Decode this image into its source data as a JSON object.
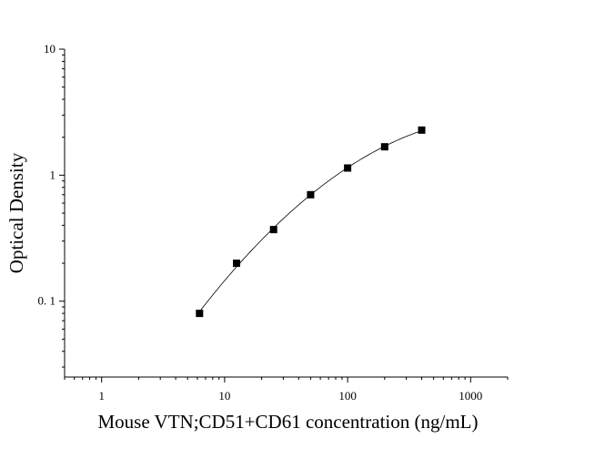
{
  "chart_data": {
    "type": "scatter",
    "title": "",
    "xlabel": "Mouse VTN;CD51+CD61 concentration (ng/mL)",
    "ylabel": "Optical Density",
    "x_scale": "log",
    "y_scale": "log",
    "xlim": [
      0.5,
      2000
    ],
    "ylim": [
      0.025,
      10
    ],
    "x_ticks": [
      1,
      10,
      100,
      1000
    ],
    "x_tick_labels": [
      "1",
      "10",
      "100",
      "1000"
    ],
    "y_ticks": [
      0.1,
      1,
      10
    ],
    "y_tick_labels": [
      "0. 1",
      "1",
      "10"
    ],
    "grid": false,
    "legend": "none",
    "series": [
      {
        "x": [
          6.25,
          12.5,
          25,
          50,
          100,
          200,
          400
        ],
        "y": [
          0.08,
          0.2,
          0.37,
          0.7,
          1.14,
          1.68,
          2.28
        ],
        "marker": "square",
        "fit_line": true,
        "color": "#000000"
      }
    ]
  }
}
